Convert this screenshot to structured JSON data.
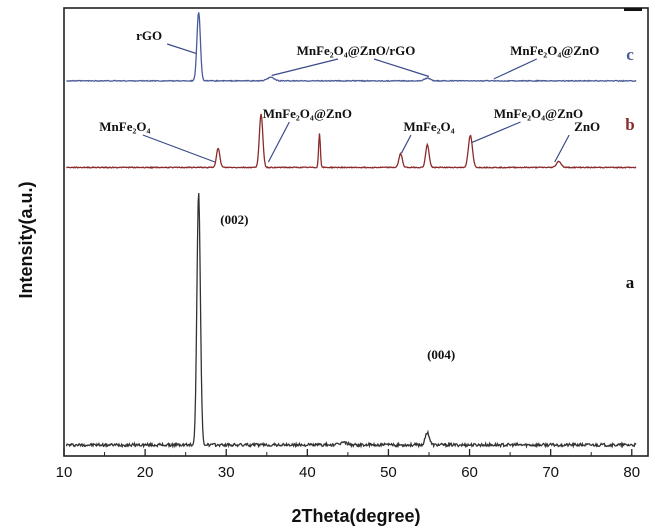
{
  "chart_data": {
    "type": "line",
    "title": "",
    "xlabel": "2Theta(degree)",
    "ylabel": "Intensity(a.u.)",
    "xlim": [
      10,
      82
    ],
    "xticks": [
      10,
      20,
      30,
      40,
      50,
      60,
      70,
      80
    ],
    "y_tick_labels": false,
    "grid": false,
    "series": [
      {
        "name": "c",
        "color": "#4a5a99",
        "baseline": 0.06,
        "peaks": [
          {
            "x": 26.6,
            "h": 1.0,
            "w": 0.3
          },
          {
            "x": 35.5,
            "h": 0.05,
            "w": 0.6
          },
          {
            "x": 54.8,
            "h": 0.04,
            "w": 0.5
          }
        ],
        "annotations": [
          {
            "text": "rGO",
            "x": 20.5,
            "ymark": "upper",
            "arrow_to": 26.3
          },
          {
            "text": "MnFe₂O₄@ZnO/rGO",
            "x": 46.0,
            "ymark": "mid",
            "arrow_to": [
              35.6,
              55.0
            ]
          },
          {
            "text": "MnFe₂O₄@ZnO",
            "x": 70.5,
            "ymark": "mid",
            "arrow_to": 63.0
          }
        ],
        "panel_label": "c"
      },
      {
        "name": "b",
        "color": "#8b2a2a",
        "baseline": 0.06,
        "peaks": [
          {
            "x": 29.0,
            "h": 0.25,
            "w": 0.3
          },
          {
            "x": 34.3,
            "h": 0.7,
            "w": 0.3
          },
          {
            "x": 41.5,
            "h": 0.45,
            "w": 0.15
          },
          {
            "x": 51.5,
            "h": 0.18,
            "w": 0.3
          },
          {
            "x": 54.8,
            "h": 0.3,
            "w": 0.3
          },
          {
            "x": 60.1,
            "h": 0.42,
            "w": 0.35
          },
          {
            "x": 71.0,
            "h": 0.08,
            "w": 0.4
          }
        ],
        "annotations": [
          {
            "text": "MnFe₂O₄",
            "x": 17.5,
            "arrow_to": 28.6
          },
          {
            "text": "MnFe₂O₄@ZnO",
            "x": 40.0,
            "arrow_to": 35.2
          },
          {
            "text": "MnFe₂O₄",
            "x": 55.0,
            "arrow_to": 51.6
          },
          {
            "text": "MnFe₂O₄@ZnO",
            "x": 68.5,
            "arrow_to": 60.3
          },
          {
            "text": "ZnO",
            "x": 74.5,
            "arrow_to": 70.5
          }
        ],
        "panel_label": "b"
      },
      {
        "name": "a",
        "color": "#333333",
        "baseline": 0.02,
        "peaks": [
          {
            "x": 26.6,
            "h": 1.0,
            "w": 0.3
          },
          {
            "x": 44.5,
            "h": 0.01,
            "w": 0.6
          },
          {
            "x": 54.8,
            "h": 0.05,
            "w": 0.35
          }
        ],
        "annotations": [
          {
            "text": "(002)",
            "x": 31.0
          },
          {
            "text": "(004)",
            "x": 56.5
          }
        ],
        "panel_label": "a"
      }
    ]
  }
}
